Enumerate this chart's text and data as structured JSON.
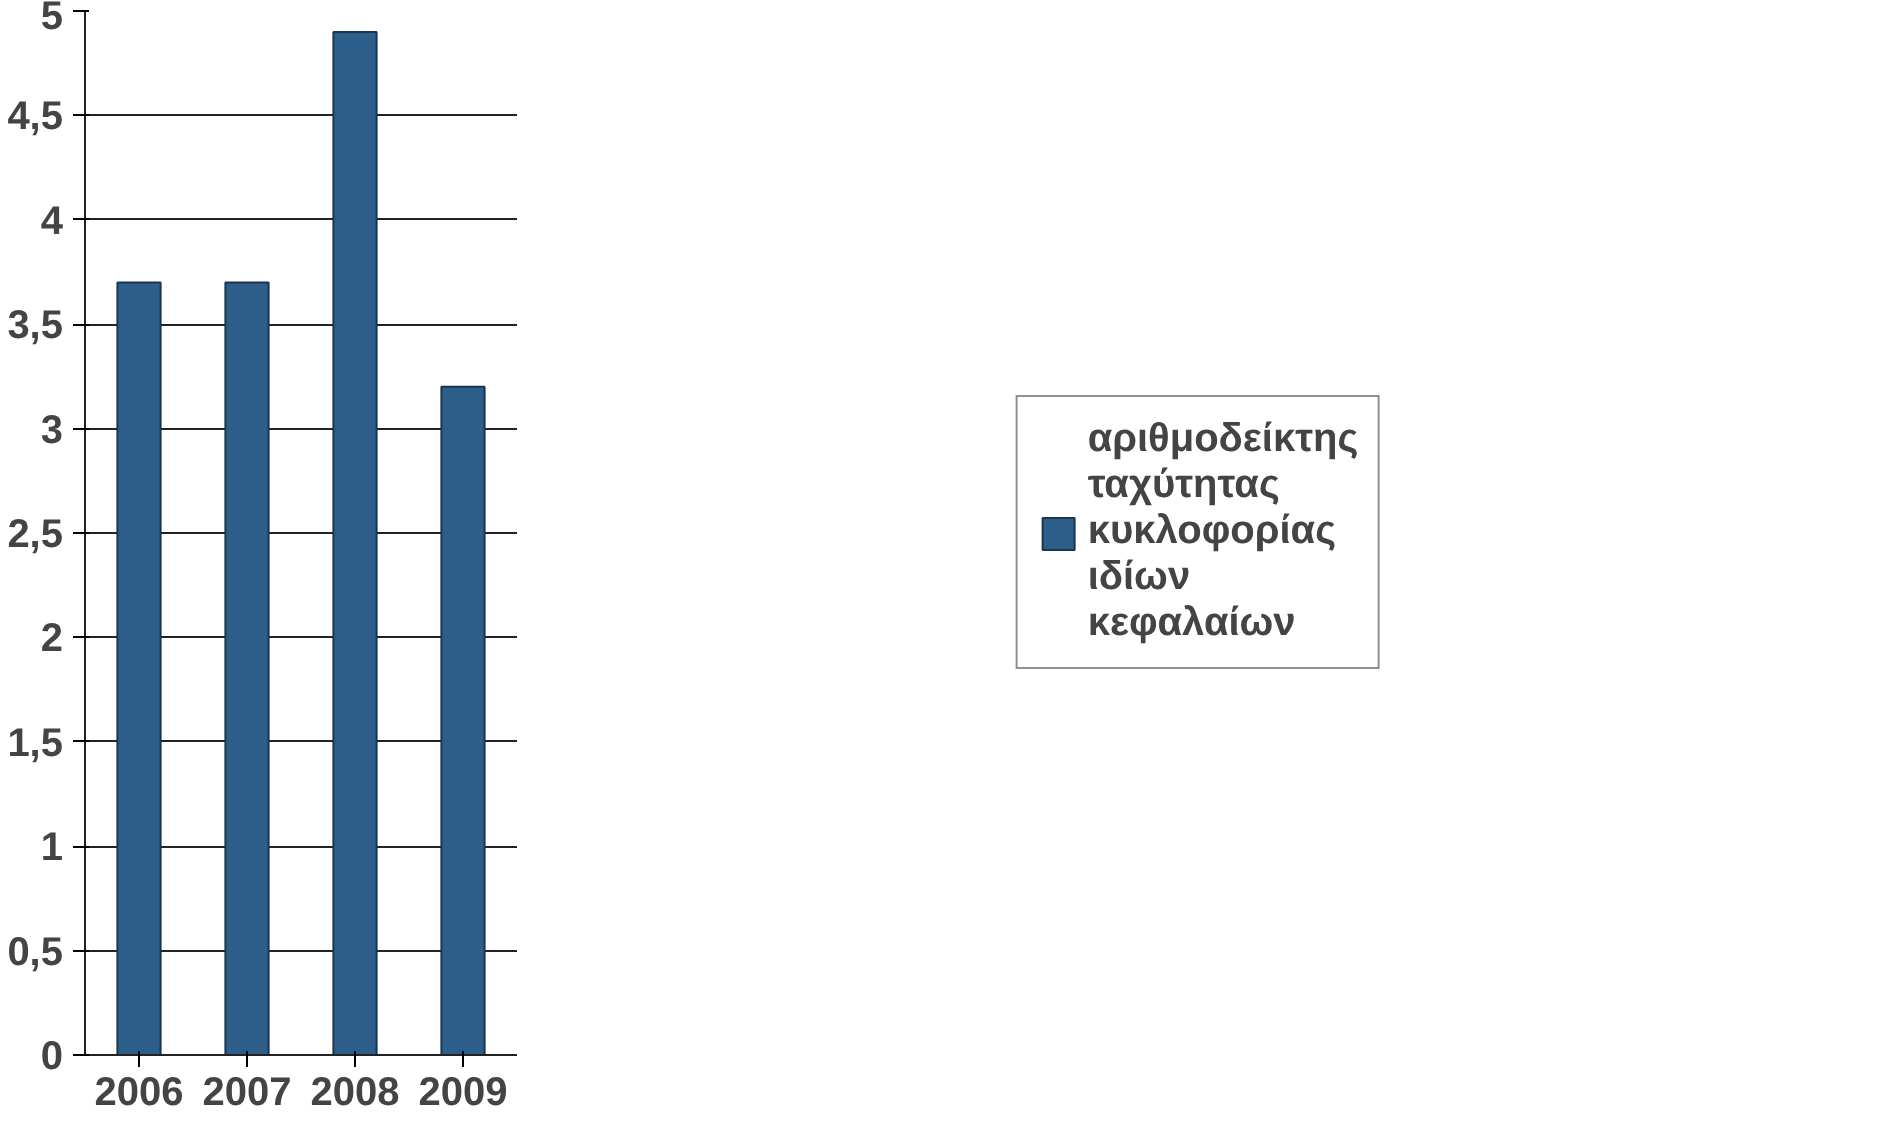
{
  "chart_data": {
    "type": "bar",
    "categories": [
      "2006",
      "2007",
      "2008",
      "2009"
    ],
    "series": [
      {
        "name": "αριθμοδείκτης ταχύτητας κυκλοφορίας ιδίων κεφαλαίων",
        "color": "#2e5f8a",
        "values": [
          3.7,
          3.7,
          4.9,
          3.2
        ]
      }
    ],
    "ylim": [
      0,
      5
    ],
    "yticks": [
      0,
      {
        "value": 0.5,
        "label": "0,5"
      },
      1,
      {
        "value": 1.5,
        "label": "1,5"
      },
      2,
      {
        "value": 2.5,
        "label": "2,5"
      },
      3,
      {
        "value": 3.5,
        "label": "3,5"
      },
      4,
      {
        "value": 4.5,
        "label": "4,5"
      },
      5
    ],
    "grid": "y",
    "legend": "right"
  }
}
